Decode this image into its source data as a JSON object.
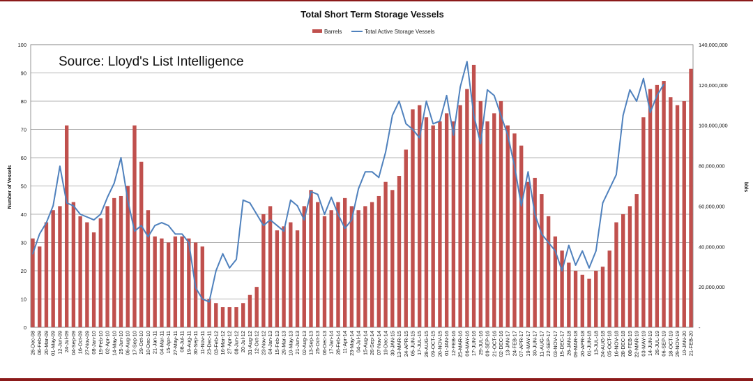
{
  "chart_data": {
    "type": "bar",
    "title": "Total Short Term Storage Vessels",
    "annotation": "Source: Lloyd's List Intelligence",
    "ylabel": "Number of Vessels",
    "y2label": "bbls",
    "ylim": [
      0,
      100
    ],
    "y2lim": [
      0,
      140000000
    ],
    "yticks": [
      "0",
      "10",
      "20",
      "30",
      "40",
      "50",
      "60",
      "70",
      "80",
      "90",
      "100"
    ],
    "y2ticks": [
      "-",
      "20,000,000",
      "40,000,000",
      "60,000,000",
      "80,000,000",
      "100,000,000",
      "120,000,000",
      "140,000,000"
    ],
    "grid": true,
    "legend_position": "top-center",
    "colors": {
      "bars": "#c0504d",
      "line": "#4f81bd"
    },
    "x_tick_labels": [
      "26-Dec-08",
      "06-Feb-09",
      "20-Mar-09",
      "01-May-09",
      "12-Jun-09",
      "24-Jul-09",
      "04-Sep-09",
      "16-Oct-09",
      "27-Nov-09",
      "08-Jan-10",
      "19-Feb-10",
      "02-Apr-10",
      "14-May-10",
      "25-Jun-10",
      "06-Aug-10",
      "17-Sep-10",
      "29-Oct-10",
      "10-Dec-10",
      "21-Jan-11",
      "04-Mar-11",
      "15-Apr-11",
      "27-May-11",
      "08-Jul-11",
      "19-Aug-11",
      "30-Sep-11",
      "11-Nov-11",
      "23-Dec-11",
      "03-Feb-12",
      "16-Mar-12",
      "27-Apr-12",
      "08-Jun-12",
      "20-Jul-12",
      "31-Aug-12",
      "12-Oct-12",
      "23-Nov-12",
      "04-Jan-13",
      "15-Feb-13",
      "29-Mar-13",
      "10-May-13",
      "21-Jun-13",
      "02-Aug-13",
      "13-Sep-13",
      "25-Oct-13",
      "06-Dec-13",
      "17-Jan-14",
      "28-Feb-14",
      "11-Apr-14",
      "23-May-14",
      "04-Jul-14",
      "15-Aug-14",
      "26-Sep-14",
      "07-Nov-14",
      "19-Dec-14",
      "30-JAN-15",
      "13-MAR-15",
      "24-APR-15",
      "05-JUN-15",
      "17-JUL-15",
      "28-AUG-15",
      "09-OCT-15",
      "20-NOV-15",
      "01-JAN-16",
      "12-FEB-16",
      "25-MAR-16",
      "06-MAY-16",
      "17-JUN-16",
      "29-JUL-16",
      "09-SEP-16",
      "21-OCT-16",
      "02-DEC-16",
      "13-JAN-17",
      "24-FEB-17",
      "07-APR-17",
      "19-MAY-17",
      "30-JUN-17",
      "11-AUG-17",
      "22-SEP-17",
      "03-NOV-17",
      "15-DEC-17",
      "26-JAN-18",
      "09-MAR-18",
      "20-APR-18",
      "01-JUN-18",
      "13-JUL-18",
      "24-AUG-18",
      "05-OCT-18",
      "16-NOV-18",
      "28-DEC-18",
      "08-FEB-19",
      "22-MAR-19",
      "03-MAY-19",
      "14-JUN-19",
      "26-JUL-19",
      "06-SEP-19",
      "18-OCT-19",
      "29-NOV-19",
      "10-JAN-20",
      "21-FEB-20"
    ],
    "series": [
      {
        "name": "Barrels",
        "kind": "bar",
        "axis": "right",
        "points": [
          [
            0,
            44000000
          ],
          [
            1,
            40000000
          ],
          [
            2,
            52000000
          ],
          [
            3,
            58000000
          ],
          [
            4,
            60000000
          ],
          [
            5,
            100000000
          ],
          [
            6,
            62000000
          ],
          [
            7,
            55000000
          ],
          [
            8,
            52000000
          ],
          [
            9,
            47000000
          ],
          [
            10,
            54000000
          ],
          [
            11,
            60000000
          ],
          [
            12,
            64000000
          ],
          [
            13,
            65000000
          ],
          [
            14,
            70000000
          ],
          [
            15,
            100000000
          ],
          [
            16,
            82000000
          ],
          [
            17,
            58000000
          ],
          [
            18,
            45000000
          ],
          [
            19,
            44000000
          ],
          [
            20,
            42000000
          ],
          [
            21,
            45000000
          ],
          [
            22,
            45000000
          ],
          [
            23,
            44000000
          ],
          [
            24,
            42000000
          ],
          [
            25,
            40000000
          ],
          [
            26,
            14000000
          ],
          [
            27,
            12000000
          ],
          [
            28,
            10000000
          ],
          [
            29,
            10000000
          ],
          [
            30,
            10000000
          ],
          [
            31,
            12000000
          ],
          [
            32,
            16000000
          ],
          [
            33,
            20000000
          ],
          [
            34,
            56000000
          ],
          [
            35,
            60000000
          ],
          [
            36,
            48000000
          ],
          [
            37,
            50000000
          ],
          [
            38,
            52000000
          ],
          [
            39,
            48000000
          ],
          [
            40,
            60000000
          ],
          [
            41,
            68000000
          ],
          [
            42,
            62000000
          ],
          [
            43,
            55000000
          ],
          [
            44,
            58000000
          ],
          [
            45,
            62000000
          ],
          [
            46,
            64000000
          ],
          [
            47,
            60000000
          ],
          [
            48,
            58000000
          ],
          [
            49,
            60000000
          ],
          [
            50,
            62000000
          ],
          [
            51,
            65000000
          ],
          [
            52,
            72000000
          ],
          [
            53,
            68000000
          ],
          [
            54,
            75000000
          ],
          [
            55,
            88000000
          ],
          [
            56,
            108000000
          ],
          [
            57,
            110000000
          ],
          [
            58,
            104000000
          ],
          [
            59,
            100000000
          ],
          [
            60,
            102000000
          ],
          [
            61,
            106000000
          ],
          [
            62,
            102000000
          ],
          [
            63,
            110000000
          ],
          [
            64,
            118000000
          ],
          [
            65,
            130000000
          ],
          [
            66,
            112000000
          ],
          [
            67,
            102000000
          ],
          [
            68,
            106000000
          ],
          [
            69,
            112000000
          ],
          [
            70,
            100000000
          ],
          [
            71,
            96000000
          ],
          [
            72,
            90000000
          ],
          [
            73,
            72000000
          ],
          [
            74,
            74000000
          ],
          [
            75,
            66000000
          ],
          [
            76,
            55000000
          ],
          [
            77,
            45000000
          ],
          [
            78,
            38000000
          ],
          [
            79,
            32000000
          ],
          [
            80,
            28000000
          ],
          [
            81,
            26000000
          ],
          [
            82,
            24000000
          ],
          [
            83,
            28000000
          ],
          [
            84,
            30000000
          ],
          [
            85,
            38000000
          ],
          [
            86,
            52000000
          ],
          [
            87,
            56000000
          ],
          [
            88,
            60000000
          ],
          [
            89,
            66000000
          ],
          [
            90,
            104000000
          ],
          [
            91,
            118000000
          ],
          [
            92,
            120000000
          ],
          [
            93,
            122000000
          ],
          [
            94,
            114000000
          ],
          [
            95,
            110000000
          ],
          [
            96,
            112000000
          ],
          [
            97,
            128000000
          ]
        ]
      },
      {
        "name": "Total Active Storage Vessels",
        "kind": "line",
        "axis": "left",
        "points": [
          [
            0,
            26
          ],
          [
            1,
            33
          ],
          [
            2,
            37
          ],
          [
            3,
            43
          ],
          [
            4,
            57
          ],
          [
            5,
            44
          ],
          [
            6,
            43
          ],
          [
            7,
            40
          ],
          [
            8,
            39
          ],
          [
            9,
            38
          ],
          [
            10,
            40
          ],
          [
            11,
            46
          ],
          [
            12,
            51
          ],
          [
            13,
            60
          ],
          [
            14,
            45
          ],
          [
            15,
            34
          ],
          [
            16,
            36
          ],
          [
            17,
            32
          ],
          [
            18,
            36
          ],
          [
            19,
            37
          ],
          [
            20,
            36
          ],
          [
            21,
            33
          ],
          [
            22,
            33
          ],
          [
            23,
            30
          ],
          [
            24,
            14
          ],
          [
            25,
            10
          ],
          [
            26,
            9
          ],
          [
            27,
            20
          ],
          [
            28,
            26
          ],
          [
            29,
            21
          ],
          [
            30,
            24
          ],
          [
            31,
            45
          ],
          [
            32,
            44
          ],
          [
            33,
            40
          ],
          [
            34,
            36
          ],
          [
            35,
            38
          ],
          [
            36,
            36
          ],
          [
            37,
            34
          ],
          [
            38,
            45
          ],
          [
            39,
            43
          ],
          [
            40,
            38
          ],
          [
            41,
            48
          ],
          [
            42,
            47
          ],
          [
            43,
            40
          ],
          [
            44,
            46
          ],
          [
            45,
            40
          ],
          [
            46,
            35
          ],
          [
            47,
            38
          ],
          [
            48,
            49
          ],
          [
            49,
            55
          ],
          [
            50,
            55
          ],
          [
            51,
            53
          ],
          [
            52,
            62
          ],
          [
            53,
            75
          ],
          [
            54,
            80
          ],
          [
            55,
            72
          ],
          [
            56,
            70
          ],
          [
            57,
            67
          ],
          [
            58,
            80
          ],
          [
            59,
            72
          ],
          [
            60,
            73
          ],
          [
            61,
            82
          ],
          [
            62,
            68
          ],
          [
            63,
            85
          ],
          [
            64,
            94
          ],
          [
            65,
            75
          ],
          [
            66,
            65
          ],
          [
            67,
            84
          ],
          [
            68,
            82
          ],
          [
            69,
            75
          ],
          [
            70,
            68
          ],
          [
            71,
            57
          ],
          [
            72,
            43
          ],
          [
            73,
            55
          ],
          [
            74,
            40
          ],
          [
            75,
            33
          ],
          [
            76,
            30
          ],
          [
            77,
            27
          ],
          [
            78,
            20
          ],
          [
            79,
            29
          ],
          [
            80,
            22
          ],
          [
            81,
            27
          ],
          [
            82,
            21
          ],
          [
            83,
            27
          ],
          [
            84,
            44
          ],
          [
            85,
            49
          ],
          [
            86,
            54
          ],
          [
            87,
            75
          ],
          [
            88,
            84
          ],
          [
            89,
            80
          ],
          [
            90,
            88
          ],
          [
            91,
            76
          ],
          [
            92,
            82
          ],
          [
            93,
            86
          ]
        ]
      }
    ]
  }
}
